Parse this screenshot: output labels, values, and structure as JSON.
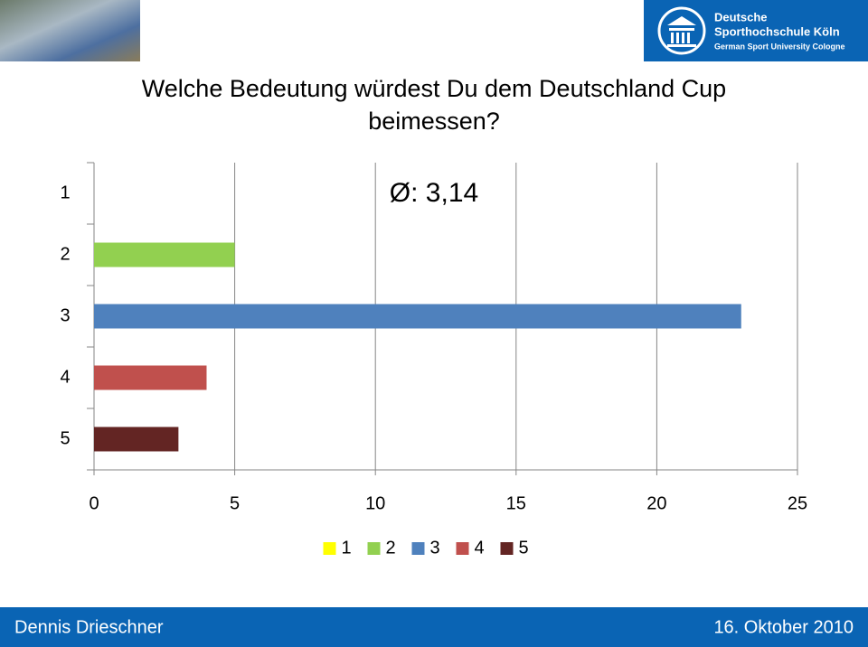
{
  "header": {
    "logo_line1": "Deutsche",
    "logo_line2": "Sporthochschule Köln",
    "logo_line3": "German Sport University Cologne"
  },
  "chart_data": {
    "type": "hbar",
    "title": "Welche Bedeutung würdest Du dem Deutschland Cup beimessen?",
    "annotation": "Ø: 3,14",
    "categories": [
      "1",
      "2",
      "3",
      "4",
      "5"
    ],
    "values": [
      0,
      5,
      23,
      4,
      3
    ],
    "colors": [
      "#ffff00",
      "#92d050",
      "#4f81bd",
      "#c0504d",
      "#632523"
    ],
    "xlim": [
      0,
      25
    ],
    "xticks": [
      0,
      5,
      10,
      15,
      20,
      25
    ],
    "grid": true,
    "legend": "bottom"
  },
  "footer": {
    "author": "Dennis Drieschner",
    "date": "16. Oktober 2010"
  }
}
